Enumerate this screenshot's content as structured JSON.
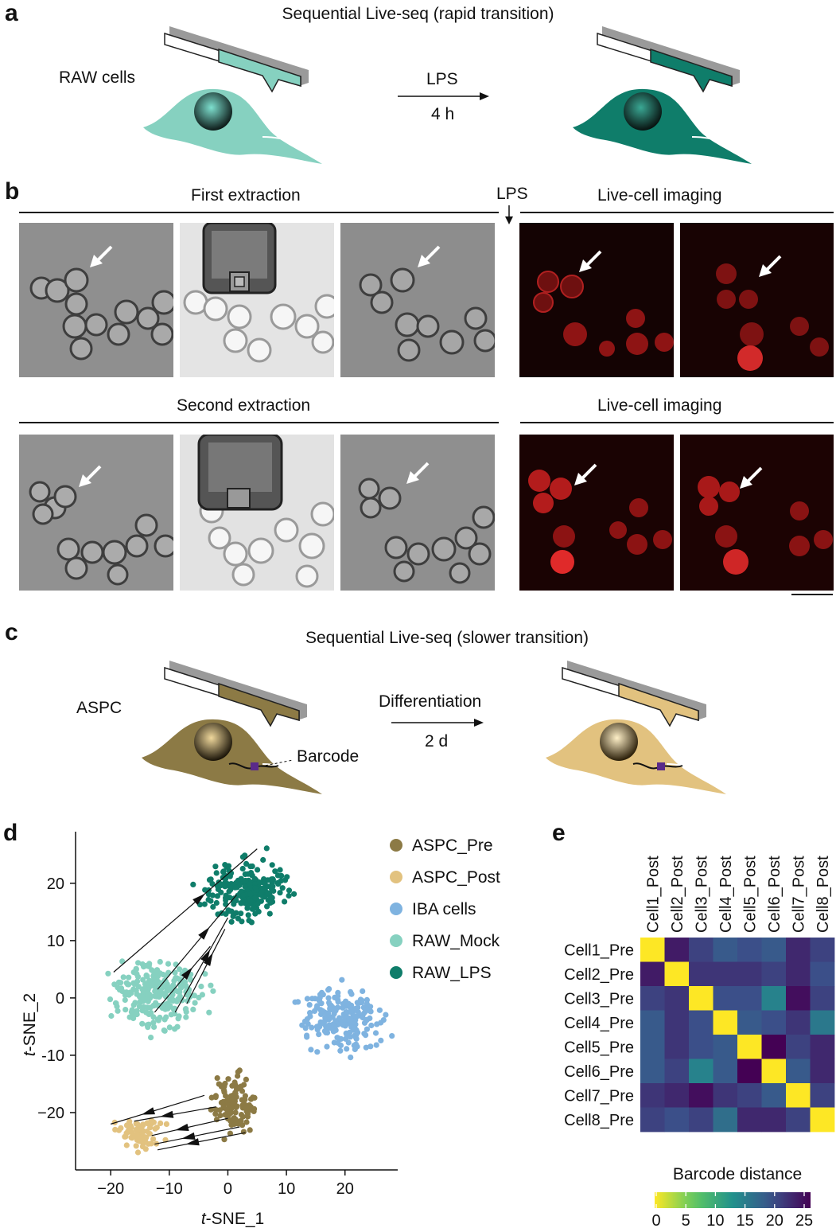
{
  "panels": {
    "a": {
      "letter": "a",
      "title": "Sequential Live-seq (rapid transition)",
      "cell_label": "RAW cells",
      "arrow_top": "LPS",
      "arrow_bottom": "4 h"
    },
    "b": {
      "letter": "b",
      "first_extraction": "First extraction",
      "lps_marker": "LPS",
      "live_imaging_top": "Live-cell imaging",
      "second_extraction": "Second extraction",
      "live_imaging_bottom": "Live-cell imaging"
    },
    "c": {
      "letter": "c",
      "title": "Sequential Live-seq (slower transition)",
      "cell_label": "ASPC",
      "arrow_top": "Differentiation",
      "arrow_bottom": "2 d",
      "barcode_label": "Barcode"
    },
    "d": {
      "letter": "d"
    },
    "e": {
      "letter": "e"
    }
  },
  "colors": {
    "raw_mock": "#86d1c0",
    "raw_lps": "#0f7d6a",
    "aspc_pre": "#8c7a45",
    "aspc_post": "#e2c27f",
    "iba": "#7fb3e0",
    "tip_gray": "#9a9a9a"
  },
  "chart_data": [
    {
      "type": "scatter",
      "xlabel_italic": "t",
      "xlabel_rest": "-SNE_1",
      "ylabel_italic": "t",
      "ylabel_rest": "-SNE_2",
      "xlim": [
        -26,
        29
      ],
      "ylim": [
        -30,
        29
      ],
      "xticks": [
        -20,
        -10,
        0,
        10,
        20
      ],
      "xtick_labels": [
        "−20",
        "−10",
        "0",
        "10",
        "20"
      ],
      "yticks": [
        -20,
        -10,
        0,
        10,
        20
      ],
      "ytick_labels": [
        "−20",
        "-10",
        "0",
        "10",
        "20"
      ],
      "legend": [
        {
          "name": "ASPC_Pre",
          "color": "#8c7a45"
        },
        {
          "name": "ASPC_Post",
          "color": "#e2c27f"
        },
        {
          "name": "IBA cells",
          "color": "#7fb3e0"
        },
        {
          "name": "RAW_Mock",
          "color": "#86d1c0"
        },
        {
          "name": "RAW_LPS",
          "color": "#0f7d6a"
        }
      ],
      "clusters": [
        {
          "name": "RAW_Mock",
          "center": [
            -12,
            0.5
          ],
          "spread": [
            6.5,
            5
          ],
          "n": 260,
          "color": "#86d1c0"
        },
        {
          "name": "RAW_LPS",
          "center": [
            3,
            19
          ],
          "spread": [
            6.5,
            5
          ],
          "n": 230,
          "color": "#0f7d6a"
        },
        {
          "name": "IBA cells",
          "center": [
            19.5,
            -4
          ],
          "spread": [
            6.5,
            5.5
          ],
          "n": 200,
          "color": "#7fb3e0"
        },
        {
          "name": "ASPC_Pre",
          "center": [
            1,
            -18
          ],
          "spread": [
            3.5,
            5.5
          ],
          "n": 110,
          "color": "#8c7a45"
        },
        {
          "name": "ASPC_Post",
          "center": [
            -15,
            -23.5
          ],
          "spread": [
            4,
            2.5
          ],
          "n": 70,
          "color": "#e2c27f"
        }
      ],
      "trajectories": [
        {
          "from": [
            -19.5,
            4.5
          ],
          "to": [
            5,
            26
          ]
        },
        {
          "from": [
            -12,
            1.5
          ],
          "to": [
            1.5,
            18
          ]
        },
        {
          "from": [
            -12.5,
            -2.5
          ],
          "to": [
            -3,
            9
          ]
        },
        {
          "from": [
            -7,
            -1
          ],
          "to": [
            -0.5,
            12
          ]
        },
        {
          "from": [
            -9,
            -2.5
          ],
          "to": [
            0,
            14
          ]
        },
        {
          "from": [
            -4,
            -17
          ],
          "to": [
            -20,
            -22
          ]
        },
        {
          "from": [
            -2,
            -19
          ],
          "to": [
            -16,
            -21.5
          ]
        },
        {
          "from": [
            0,
            -21
          ],
          "to": [
            -13,
            -24
          ]
        },
        {
          "from": [
            2,
            -22.5
          ],
          "to": [
            -12.5,
            -25.5
          ]
        },
        {
          "from": [
            3,
            -23.5
          ],
          "to": [
            -12,
            -26.5
          ]
        }
      ]
    },
    {
      "type": "heatmap",
      "rows": [
        "Cell1_Pre",
        "Cell2_Pre",
        "Cell3_Pre",
        "Cell4_Pre",
        "Cell5_Pre",
        "Cell6_Pre",
        "Cell7_Pre",
        "Cell8_Pre"
      ],
      "columns": [
        "Cell1_Post",
        "Cell2_Post",
        "Cell3_Post",
        "Cell4_Post",
        "Cell5_Post",
        "Cell6_Post",
        "Cell7_Post",
        "Cell8_Post"
      ],
      "values": [
        [
          0,
          23,
          20,
          18,
          19,
          18,
          22,
          20
        ],
        [
          23,
          0,
          21,
          21,
          21,
          20,
          22,
          19
        ],
        [
          20,
          21,
          0,
          19,
          19,
          14,
          24,
          20
        ],
        [
          18,
          21,
          19,
          0,
          18,
          19,
          21,
          15
        ],
        [
          18,
          21,
          19,
          18,
          0,
          25,
          20,
          22
        ],
        [
          18,
          20,
          14,
          18,
          25,
          0,
          18,
          22
        ],
        [
          21,
          22,
          24,
          21,
          20,
          18,
          0,
          20
        ],
        [
          20,
          19,
          20,
          16,
          22,
          22,
          20,
          0
        ]
      ],
      "colorbar_label": "Barcode distance",
      "colorbar_ticks": [
        0,
        5,
        10,
        15,
        20,
        25
      ],
      "vmin": 0,
      "vmax": 25
    }
  ]
}
